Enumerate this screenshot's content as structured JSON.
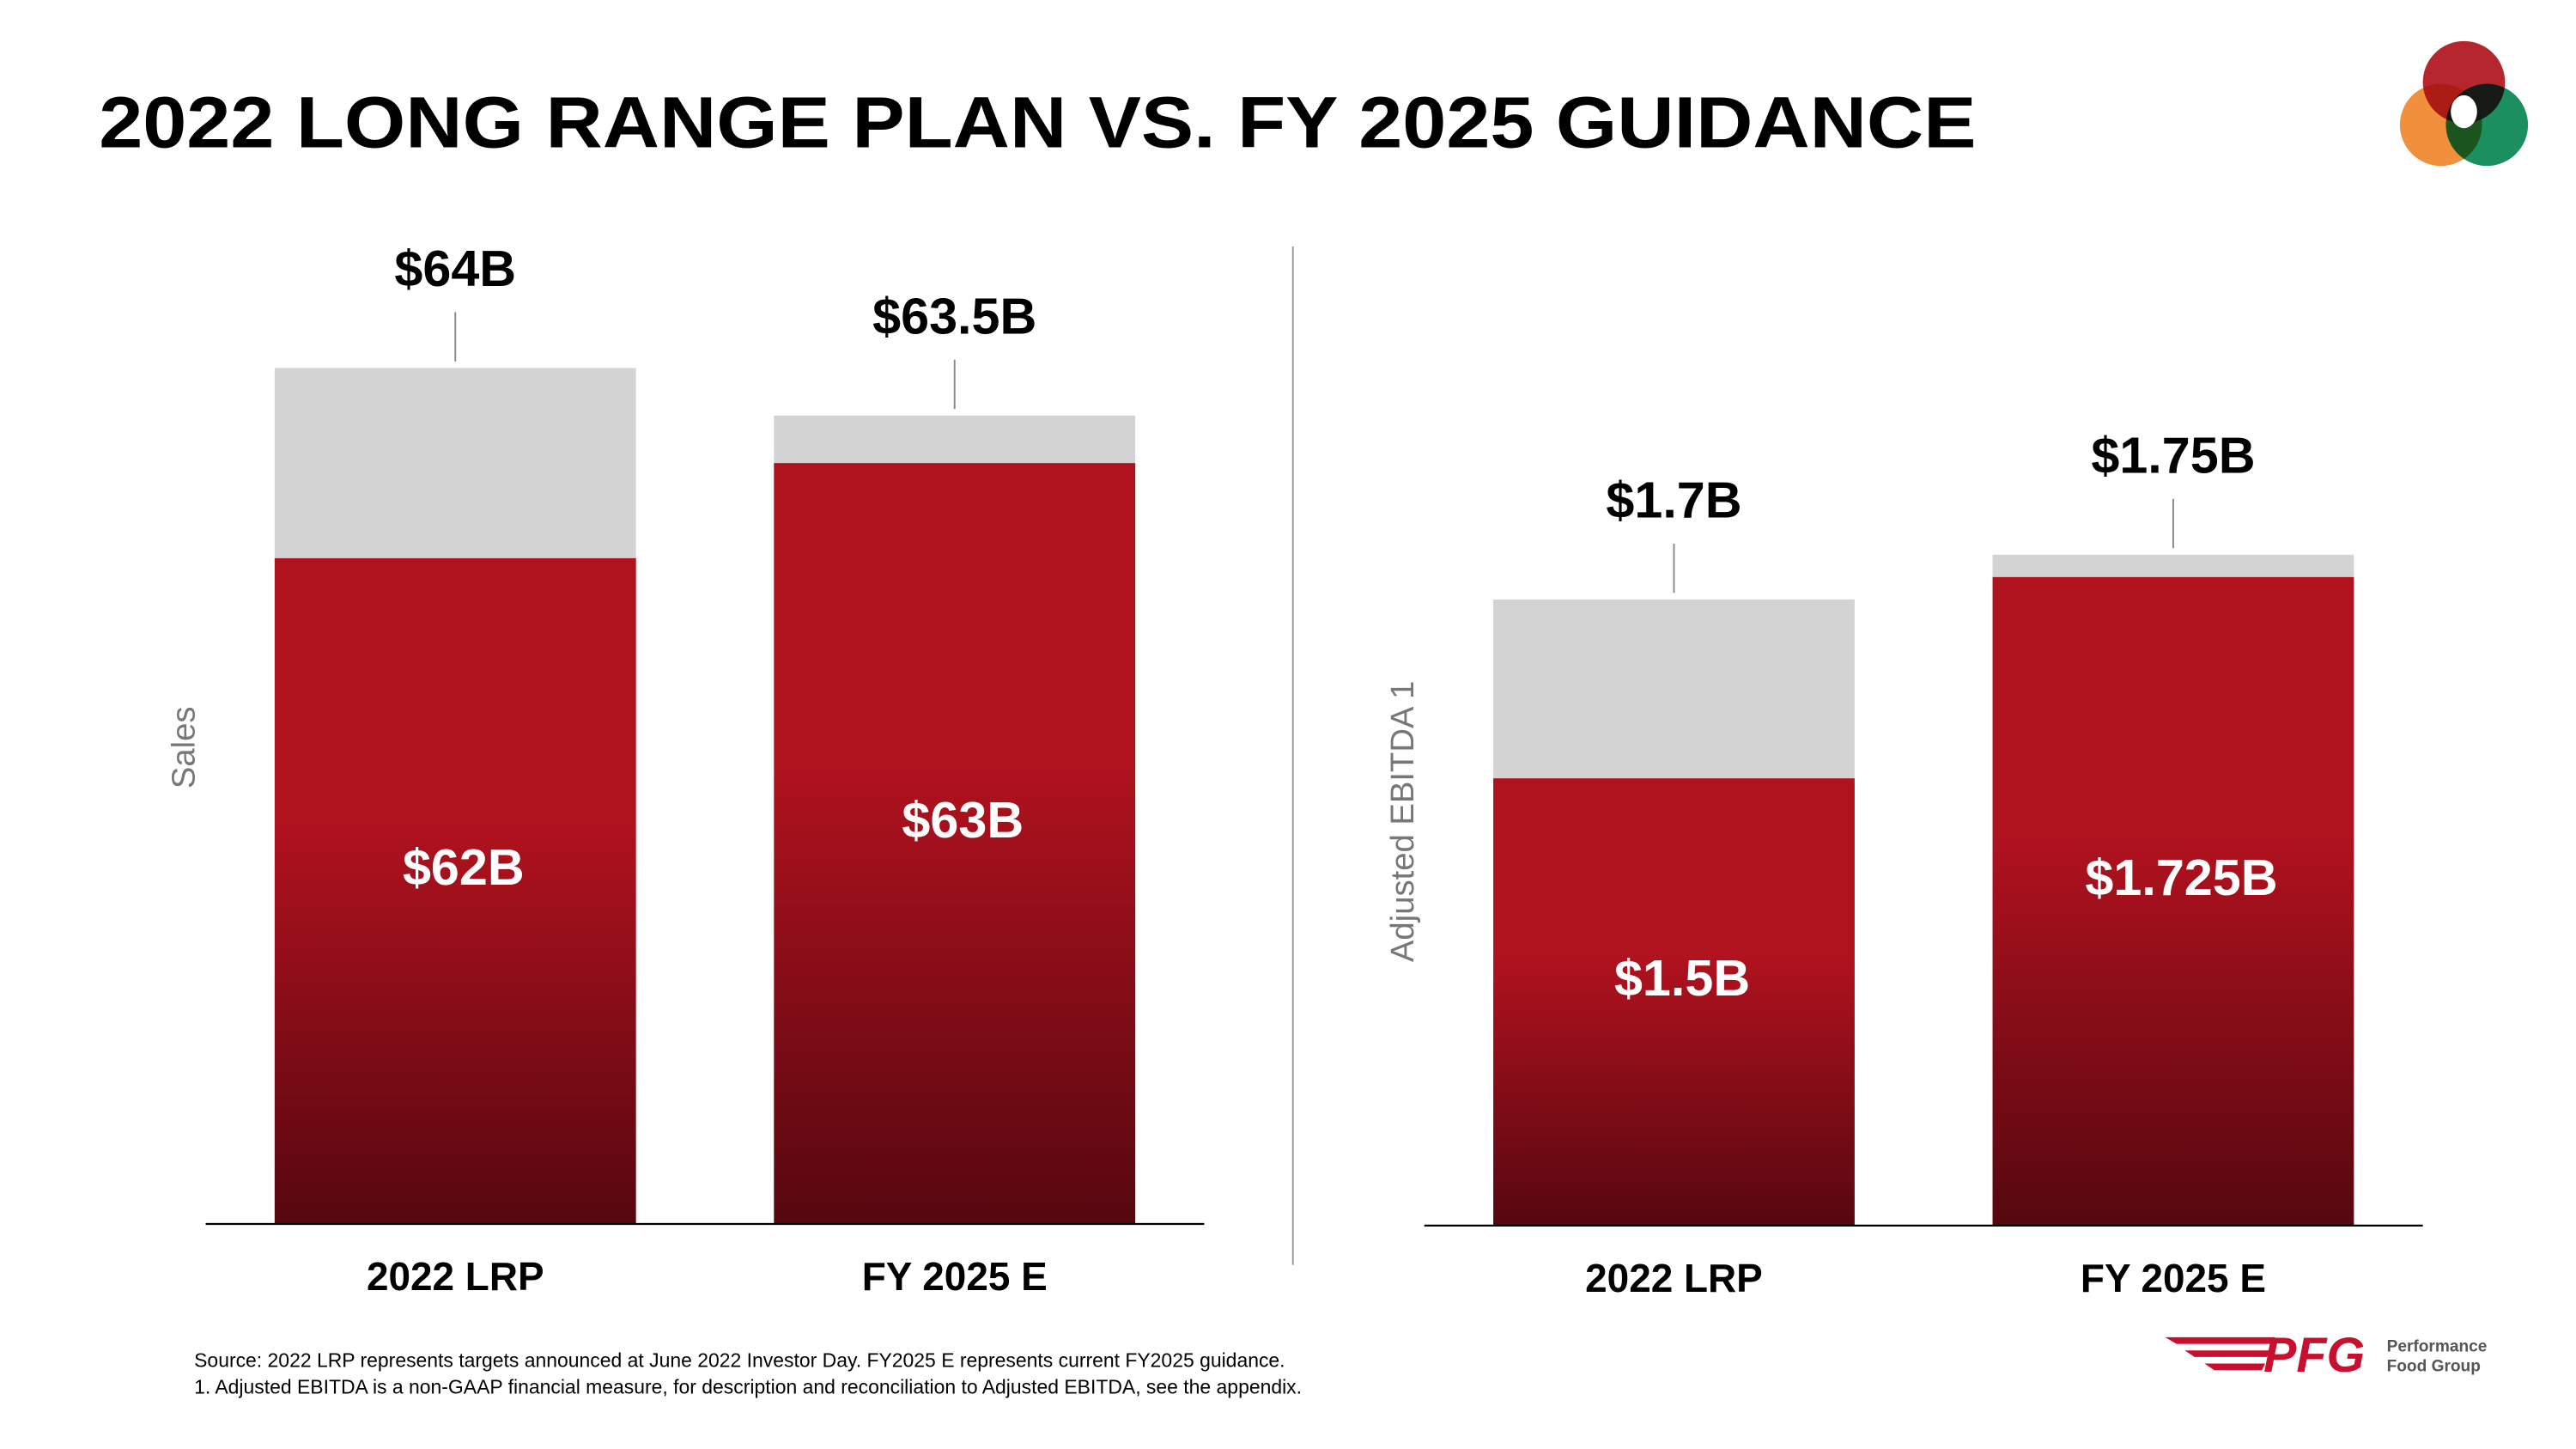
{
  "title": "2022 LONG RANGE PLAN VS. FY 2025 GUIDANCE",
  "chart_data": [
    {
      "type": "bar",
      "ylabel": "Sales",
      "categories": [
        "2022 LRP",
        "FY 2025 E"
      ],
      "ylim": [
        55,
        64
      ],
      "series": [
        {
          "color": "#d3d3d3",
          "values": [
            64,
            63.5
          ],
          "value_labels": [
            "$64B",
            "$63.5B"
          ]
        },
        {
          "color": "#b0121e",
          "values": [
            62,
            63
          ],
          "value_labels": [
            "$62B",
            "$63B"
          ]
        }
      ]
    },
    {
      "type": "bar",
      "ylabel": "Adjusted EBITDA 1",
      "categories": [
        "2022 LRP",
        "FY 2025 E"
      ],
      "ylim": [
        1.0,
        1.9
      ],
      "series": [
        {
          "color": "#d3d3d3",
          "values": [
            1.7,
            1.75
          ],
          "value_labels": [
            "$1.7B",
            "$1.75B"
          ]
        },
        {
          "color": "#b0121e",
          "values": [
            1.5,
            1.725
          ],
          "value_labels": [
            "$1.5B",
            "$1.725B"
          ]
        }
      ]
    }
  ],
  "footnotes": [
    "Source: 2022 LRP represents targets announced at June 2022 Investor Day. FY2025 E represents current FY2025 guidance.",
    "1.  Adjusted EBITDA is a non-GAAP financial measure, for description and reconciliation to Adjusted EBITDA, see the appendix."
  ],
  "logo": {
    "mark": "PFG",
    "line1": "Performance",
    "line2": "Food Group"
  }
}
